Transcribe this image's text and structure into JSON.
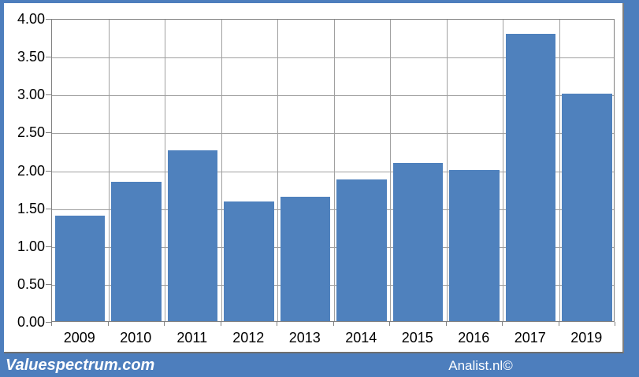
{
  "chart_data": {
    "type": "bar",
    "title": "",
    "categories": [
      "2009",
      "2010",
      "2011",
      "2012",
      "2013",
      "2014",
      "2015",
      "2016",
      "2017",
      "2019"
    ],
    "values": [
      1.39,
      1.84,
      2.25,
      1.58,
      1.64,
      1.87,
      2.09,
      2.0,
      3.79,
      3.0
    ],
    "xlabel": "",
    "ylabel": "",
    "ylim": [
      0,
      4
    ],
    "y_tick_step": 0.5,
    "y_tick_labels": [
      "0.00",
      "0.50",
      "1.00",
      "1.50",
      "2.00",
      "2.50",
      "3.00",
      "3.50",
      "4.00"
    ],
    "grid": "horizontal and vertical gridlines on",
    "legend_position": "none",
    "bar_color": "#4f81bd",
    "gridline_color": "#a0a0a0",
    "axis_color": "#808080"
  },
  "footer": {
    "brand": "Valuespectrum.com",
    "credit": "Analist.nl©"
  },
  "colors": {
    "frame_blue": "#4d7ebd",
    "panel_background": "#ffffff",
    "text_color": "#000000",
    "footer_text_color": "#ffffff"
  }
}
